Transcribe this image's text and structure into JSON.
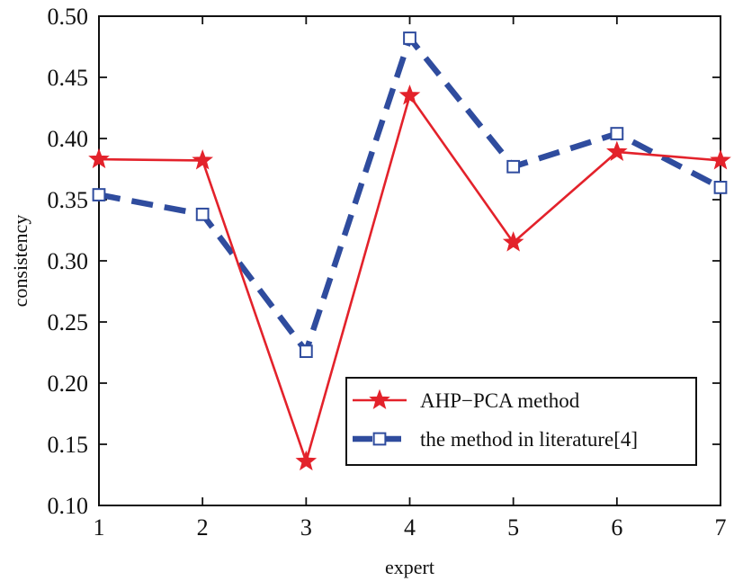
{
  "chart_data": {
    "type": "line",
    "title": "",
    "xlabel": "expert",
    "ylabel": "consistency",
    "x": [
      1,
      2,
      3,
      4,
      5,
      6,
      7
    ],
    "xlim": [
      1,
      7
    ],
    "ylim": [
      0.1,
      0.5
    ],
    "x_ticks": [
      "1",
      "2",
      "3",
      "4",
      "5",
      "6",
      "7"
    ],
    "y_ticks": [
      "0.10",
      "0.15",
      "0.20",
      "0.25",
      "0.30",
      "0.35",
      "0.40",
      "0.45",
      "0.50"
    ],
    "grid": false,
    "legend_position": "bottom-right",
    "series": [
      {
        "name": "AHP−PCA method",
        "values": [
          0.383,
          0.382,
          0.136,
          0.435,
          0.315,
          0.389,
          0.382
        ],
        "color": "#e3222b",
        "line_style": "solid",
        "marker": "star"
      },
      {
        "name": "the method in literature[4]",
        "values": [
          0.354,
          0.338,
          0.226,
          0.482,
          0.377,
          0.404,
          0.36
        ],
        "color": "#2f4c9e",
        "line_style": "dashed",
        "marker": "square"
      }
    ]
  }
}
